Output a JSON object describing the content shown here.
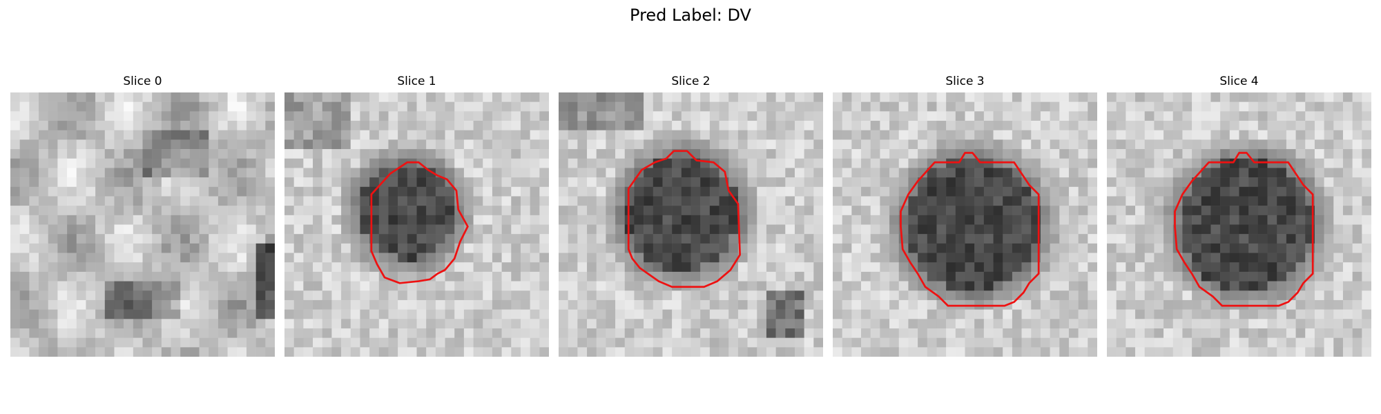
{
  "figure": {
    "title": "Pred Label: DV"
  },
  "panels": [
    {
      "title": "Slice 0",
      "has_contour": false
    },
    {
      "title": "Slice 1",
      "has_contour": true
    },
    {
      "title": "Slice 2",
      "has_contour": true
    },
    {
      "title": "Slice 3",
      "has_contour": true
    },
    {
      "title": "Slice 4",
      "has_contour": true
    }
  ],
  "colors": {
    "contour": "#ee1111",
    "background": "#ffffff"
  },
  "image": {
    "colormap": "grayscale",
    "grid": "28x28"
  }
}
